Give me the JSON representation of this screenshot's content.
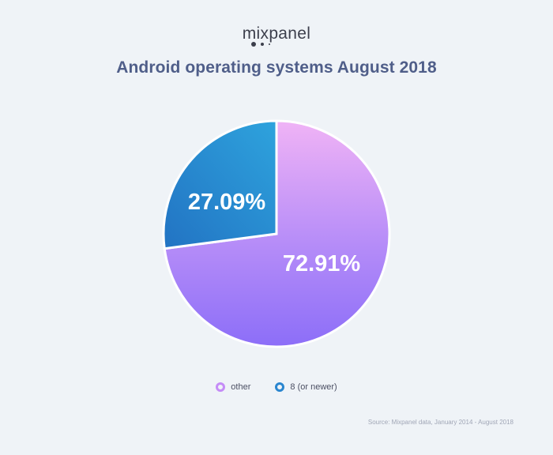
{
  "logo": {
    "text": "mixpanel"
  },
  "chart_data": {
    "type": "pie",
    "title": "Android operating systems August 2018",
    "series": [
      {
        "name": "other",
        "value": 72.91,
        "label": "72.91%",
        "color": "#a97cff"
      },
      {
        "name": "8 (or newer)",
        "value": 27.09,
        "label": "27.09%",
        "color": "#2a86cf"
      }
    ],
    "legend": {
      "placement": "bottom-center",
      "items": [
        {
          "name": "other",
          "color": "#a97cff"
        },
        {
          "name": "8 (or newer)",
          "color": "#2a86cf"
        }
      ]
    },
    "source": "Source: Mixpanel data, January 2014 - August 2018"
  }
}
